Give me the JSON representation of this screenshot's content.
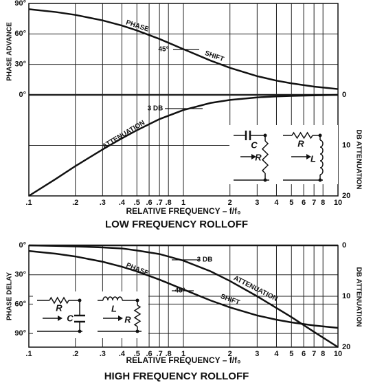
{
  "chart_data": [
    {
      "type": "line",
      "title": "LOW FREQUENCY ROLLOFF",
      "xlabel": "RELATIVE FREQUENCY – f/f₀",
      "ylabel": "PHASE ADVANCE",
      "y2label": "DB ATTENUATION",
      "xscale": "log",
      "xlim": [
        0.1,
        10
      ],
      "xticks": [
        {
          "value": 0.1,
          "label": ".1"
        },
        {
          "value": 0.2,
          "label": ".2"
        },
        {
          "value": 0.3,
          "label": ".3"
        },
        {
          "value": 0.4,
          "label": ".4"
        },
        {
          "value": 0.5,
          "label": ".5"
        },
        {
          "value": 0.6,
          "label": ".6"
        },
        {
          "value": 0.7,
          "label": ".7"
        },
        {
          "value": 0.8,
          "label": ".8"
        },
        1,
        2,
        3,
        4,
        5,
        6,
        7,
        8,
        10
      ],
      "ylim": [
        -99.5,
        90
      ],
      "yticks": [
        {
          "value": 0,
          "label": "0°"
        },
        {
          "value": 30,
          "label": "30°"
        },
        {
          "value": 60,
          "label": "60°"
        },
        {
          "value": 90,
          "label": "90°"
        }
      ],
      "y2lim": [
        20,
        -18.1
      ],
      "y2ticks": [
        0,
        10,
        20
      ],
      "grid": true,
      "x": [
        0.1,
        0.15,
        0.2,
        0.3,
        0.4,
        0.5,
        0.7,
        1,
        1.5,
        2,
        3,
        4,
        5,
        7,
        10
      ],
      "series": [
        {
          "color": "#111111",
          "values": [
            84.3,
            81.5,
            78.7,
            73.3,
            68.2,
            63.4,
            55.0,
            45.0,
            33.7,
            26.6,
            18.4,
            14.0,
            11.3,
            8.1,
            5.7
          ]
        },
        {
          "color": "#111111",
          "axis": "y2",
          "values": [
            20.0,
            16.6,
            14.1,
            10.8,
            8.6,
            7.0,
            4.8,
            3.0,
            1.6,
            1.0,
            0.5,
            0.3,
            0.2,
            0.1,
            0.0
          ]
        }
      ],
      "annotations": [
        "PHASE",
        "45°",
        "SHIFT",
        "3 DB",
        "ATTENUATION"
      ],
      "insets": [
        "C",
        "R",
        "R",
        "L"
      ]
    },
    {
      "type": "line",
      "title": "HIGH FREQUENCY ROLLOFF",
      "xlabel": "RELATIVE FREQUENCY – f/f₀",
      "ylabel": "PHASE DELAY",
      "y2label": "DB ATTENUATION",
      "xscale": "log",
      "xlim": [
        0.1,
        10
      ],
      "xticks": [
        {
          "value": 0.1,
          "label": ".1"
        },
        {
          "value": 0.2,
          "label": ".2"
        },
        {
          "value": 0.3,
          "label": ".3"
        },
        {
          "value": 0.4,
          "label": ".4"
        },
        {
          "value": 0.5,
          "label": ".5"
        },
        {
          "value": 0.6,
          "label": ".6"
        },
        {
          "value": 0.7,
          "label": ".7"
        },
        {
          "value": 0.8,
          "label": ".8"
        },
        1,
        2,
        3,
        4,
        5,
        6,
        7,
        8,
        10
      ],
      "ylim": [
        104,
        0
      ],
      "yticks": [
        {
          "value": 0,
          "label": "0°"
        },
        {
          "value": 30,
          "label": "30°"
        },
        {
          "value": 60,
          "label": "60°"
        },
        {
          "value": 90,
          "label": "90°"
        }
      ],
      "y2lim": [
        20,
        0
      ],
      "y2ticks": [
        0,
        10,
        20
      ],
      "grid": true,
      "x": [
        0.1,
        0.15,
        0.2,
        0.3,
        0.4,
        0.5,
        0.7,
        1,
        1.5,
        2,
        3,
        4,
        5,
        7,
        10
      ],
      "series": [
        {
          "color": "#111111",
          "values": [
            5.7,
            8.5,
            11.3,
            16.7,
            21.8,
            26.6,
            35.0,
            45.0,
            56.3,
            63.4,
            71.6,
            76.0,
            78.7,
            81.9,
            84.3
          ]
        },
        {
          "color": "#111111",
          "axis": "y2",
          "values": [
            0.0,
            0.1,
            0.2,
            0.4,
            0.6,
            1.0,
            1.7,
            3.0,
            5.1,
            7.0,
            10.0,
            12.3,
            14.1,
            17.0,
            20.0
          ]
        }
      ],
      "annotations": [
        "3 DB",
        "PHASE",
        "45°",
        "SHIFT",
        "ATTENUATION"
      ],
      "insets": [
        "R",
        "C",
        "L",
        "R"
      ]
    }
  ]
}
